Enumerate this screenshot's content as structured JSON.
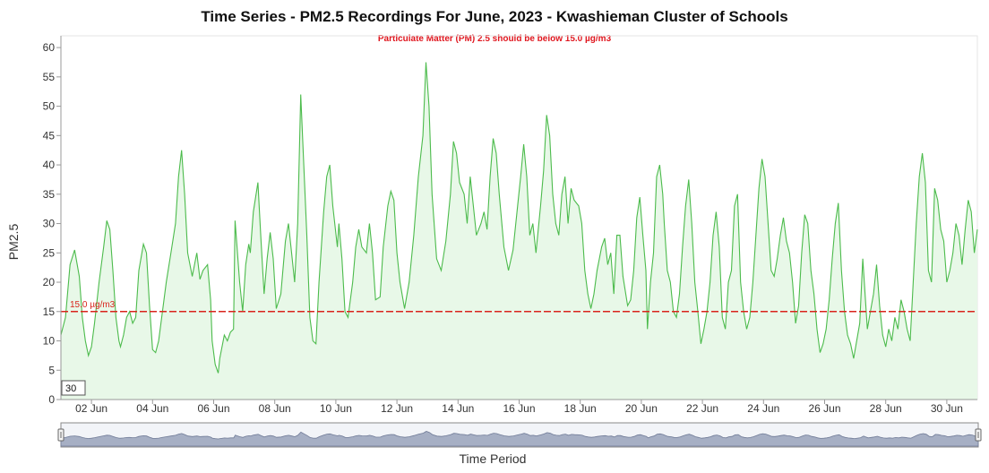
{
  "chart_data": {
    "type": "area",
    "title": "Time Series - PM2.5 Recordings For June, 2023 - Kwashieman Cluster of Schools",
    "subtitle": "Particulate Matter (PM) 2.5 should be below 15.0 µg/m3",
    "xlabel": "Time Period",
    "ylabel": "PM2.5",
    "ylim": [
      0,
      62
    ],
    "yticks": [
      "0",
      "5",
      "10",
      "15",
      "20",
      "25",
      "30",
      "35",
      "40",
      "45",
      "50",
      "55",
      "60"
    ],
    "xlim_days": [
      1,
      31
    ],
    "xticks": [
      {
        "label": "02 Jun",
        "day": 2
      },
      {
        "label": "04 Jun",
        "day": 4
      },
      {
        "label": "06 Jun",
        "day": 6
      },
      {
        "label": "08 Jun",
        "day": 8
      },
      {
        "label": "10 Jun",
        "day": 10
      },
      {
        "label": "12 Jun",
        "day": 12
      },
      {
        "label": "14 Jun",
        "day": 14
      },
      {
        "label": "16 Jun",
        "day": 16
      },
      {
        "label": "18 Jun",
        "day": 18
      },
      {
        "label": "20 Jun",
        "day": 20
      },
      {
        "label": "22 Jun",
        "day": 22
      },
      {
        "label": "24 Jun",
        "day": 24
      },
      {
        "label": "26 Jun",
        "day": 26
      },
      {
        "label": "28 Jun",
        "day": 28
      },
      {
        "label": "30 Jun",
        "day": 30
      }
    ],
    "threshold": {
      "value": 15.0,
      "label": "15.0 µg/m3",
      "color": "#d9241c"
    },
    "period_box": "30",
    "series": [
      {
        "color": "#4cbb4c",
        "fill": "#e8f8e8",
        "points": [
          [
            1.0,
            11
          ],
          [
            1.15,
            14
          ],
          [
            1.3,
            23
          ],
          [
            1.45,
            25.5
          ],
          [
            1.6,
            21
          ],
          [
            1.7,
            14
          ],
          [
            1.8,
            10
          ],
          [
            1.9,
            7.5
          ],
          [
            2.0,
            9
          ],
          [
            2.1,
            13
          ],
          [
            2.25,
            20
          ],
          [
            2.4,
            26
          ],
          [
            2.5,
            30.5
          ],
          [
            2.6,
            29
          ],
          [
            2.7,
            22
          ],
          [
            2.8,
            14
          ],
          [
            2.9,
            10
          ],
          [
            2.95,
            9
          ],
          [
            3.05,
            11
          ],
          [
            3.15,
            14
          ],
          [
            3.25,
            15
          ],
          [
            3.35,
            13
          ],
          [
            3.45,
            14
          ],
          [
            3.55,
            22
          ],
          [
            3.7,
            26.5
          ],
          [
            3.8,
            25
          ],
          [
            3.9,
            16
          ],
          [
            4.0,
            8.5
          ],
          [
            4.1,
            8
          ],
          [
            4.2,
            10
          ],
          [
            4.3,
            14
          ],
          [
            4.45,
            20
          ],
          [
            4.6,
            25
          ],
          [
            4.75,
            30
          ],
          [
            4.85,
            38
          ],
          [
            4.95,
            42.5
          ],
          [
            5.05,
            35
          ],
          [
            5.15,
            25
          ],
          [
            5.3,
            21
          ],
          [
            5.45,
            25
          ],
          [
            5.55,
            20.5
          ],
          [
            5.65,
            22
          ],
          [
            5.8,
            23
          ],
          [
            5.9,
            17
          ],
          [
            5.95,
            10
          ],
          [
            6.05,
            6
          ],
          [
            6.15,
            4.5
          ],
          [
            6.2,
            7
          ],
          [
            6.35,
            11
          ],
          [
            6.45,
            10
          ],
          [
            6.55,
            11.5
          ],
          [
            6.65,
            12
          ],
          [
            6.7,
            30.5
          ],
          [
            6.75,
            27
          ],
          [
            6.85,
            20
          ],
          [
            6.95,
            15
          ],
          [
            7.05,
            23
          ],
          [
            7.15,
            26.5
          ],
          [
            7.2,
            25
          ],
          [
            7.3,
            32
          ],
          [
            7.45,
            37
          ],
          [
            7.55,
            27
          ],
          [
            7.65,
            18
          ],
          [
            7.75,
            24
          ],
          [
            7.85,
            28.5
          ],
          [
            7.95,
            24
          ],
          [
            8.05,
            15.5
          ],
          [
            8.2,
            18
          ],
          [
            8.35,
            27
          ],
          [
            8.45,
            30
          ],
          [
            8.55,
            25
          ],
          [
            8.65,
            20
          ],
          [
            8.75,
            30
          ],
          [
            8.85,
            52
          ],
          [
            8.95,
            40
          ],
          [
            9.05,
            28
          ],
          [
            9.15,
            14
          ],
          [
            9.25,
            10
          ],
          [
            9.35,
            9.5
          ],
          [
            9.45,
            20
          ],
          [
            9.6,
            32
          ],
          [
            9.7,
            38
          ],
          [
            9.8,
            40
          ],
          [
            9.9,
            33
          ],
          [
            10.05,
            26
          ],
          [
            10.1,
            30
          ],
          [
            10.2,
            24
          ],
          [
            10.3,
            15
          ],
          [
            10.4,
            14
          ],
          [
            10.55,
            20
          ],
          [
            10.65,
            26
          ],
          [
            10.75,
            29
          ],
          [
            10.85,
            26
          ],
          [
            11.0,
            25
          ],
          [
            11.1,
            30
          ],
          [
            11.2,
            25
          ],
          [
            11.3,
            17
          ],
          [
            11.45,
            17.5
          ],
          [
            11.55,
            26
          ],
          [
            11.7,
            33
          ],
          [
            11.8,
            35.5
          ],
          [
            11.9,
            34
          ],
          [
            12.0,
            25
          ],
          [
            12.1,
            20
          ],
          [
            12.25,
            15.5
          ],
          [
            12.4,
            20
          ],
          [
            12.55,
            28
          ],
          [
            12.7,
            38
          ],
          [
            12.85,
            45
          ],
          [
            12.95,
            57.5
          ],
          [
            13.05,
            50
          ],
          [
            13.15,
            35
          ],
          [
            13.3,
            24
          ],
          [
            13.45,
            22
          ],
          [
            13.6,
            27
          ],
          [
            13.75,
            35
          ],
          [
            13.85,
            44
          ],
          [
            13.95,
            42
          ],
          [
            14.05,
            37
          ],
          [
            14.2,
            35
          ],
          [
            14.3,
            30
          ],
          [
            14.4,
            38
          ],
          [
            14.5,
            33
          ],
          [
            14.6,
            28
          ],
          [
            14.75,
            30
          ],
          [
            14.85,
            32
          ],
          [
            14.95,
            29
          ],
          [
            15.05,
            38
          ],
          [
            15.15,
            44.5
          ],
          [
            15.25,
            42
          ],
          [
            15.35,
            35
          ],
          [
            15.5,
            26
          ],
          [
            15.65,
            22
          ],
          [
            15.8,
            25.5
          ],
          [
            15.95,
            33
          ],
          [
            16.05,
            38
          ],
          [
            16.15,
            43.5
          ],
          [
            16.25,
            38
          ],
          [
            16.35,
            28
          ],
          [
            16.45,
            30
          ],
          [
            16.55,
            25
          ],
          [
            16.7,
            33
          ],
          [
            16.8,
            39
          ],
          [
            16.9,
            48.5
          ],
          [
            17.0,
            45
          ],
          [
            17.1,
            35
          ],
          [
            17.2,
            30
          ],
          [
            17.3,
            28
          ],
          [
            17.4,
            35
          ],
          [
            17.5,
            38
          ],
          [
            17.6,
            30
          ],
          [
            17.7,
            36
          ],
          [
            17.8,
            34
          ],
          [
            17.95,
            33
          ],
          [
            18.05,
            30
          ],
          [
            18.15,
            22
          ],
          [
            18.25,
            18
          ],
          [
            18.35,
            15.5
          ],
          [
            18.45,
            18
          ],
          [
            18.55,
            22
          ],
          [
            18.7,
            26
          ],
          [
            18.8,
            27.5
          ],
          [
            18.9,
            23
          ],
          [
            19.0,
            25
          ],
          [
            19.1,
            18
          ],
          [
            19.2,
            28
          ],
          [
            19.3,
            28
          ],
          [
            19.4,
            21
          ],
          [
            19.55,
            16
          ],
          [
            19.65,
            17
          ],
          [
            19.75,
            22
          ],
          [
            19.85,
            31
          ],
          [
            19.95,
            34.5
          ],
          [
            20.05,
            28
          ],
          [
            20.15,
            22
          ],
          [
            20.2,
            12
          ],
          [
            20.3,
            20
          ],
          [
            20.4,
            25
          ],
          [
            20.5,
            38
          ],
          [
            20.6,
            40
          ],
          [
            20.7,
            35
          ],
          [
            20.75,
            30
          ],
          [
            20.85,
            22
          ],
          [
            20.95,
            20
          ],
          [
            21.05,
            15
          ],
          [
            21.15,
            14
          ],
          [
            21.25,
            18
          ],
          [
            21.35,
            26
          ],
          [
            21.45,
            33
          ],
          [
            21.55,
            37.5
          ],
          [
            21.65,
            30
          ],
          [
            21.75,
            20
          ],
          [
            21.85,
            15
          ],
          [
            21.95,
            9.5
          ],
          [
            22.05,
            12
          ],
          [
            22.15,
            15
          ],
          [
            22.25,
            20
          ],
          [
            22.35,
            28
          ],
          [
            22.45,
            32
          ],
          [
            22.55,
            26
          ],
          [
            22.65,
            14
          ],
          [
            22.75,
            12
          ],
          [
            22.85,
            20
          ],
          [
            22.95,
            22
          ],
          [
            23.05,
            33
          ],
          [
            23.15,
            35
          ],
          [
            23.25,
            20
          ],
          [
            23.35,
            15
          ],
          [
            23.45,
            12
          ],
          [
            23.55,
            14
          ],
          [
            23.65,
            20
          ],
          [
            23.75,
            28
          ],
          [
            23.85,
            36
          ],
          [
            23.95,
            41
          ],
          [
            24.05,
            38
          ],
          [
            24.15,
            30
          ],
          [
            24.25,
            22
          ],
          [
            24.35,
            21
          ],
          [
            24.45,
            24
          ],
          [
            24.55,
            28
          ],
          [
            24.65,
            31
          ],
          [
            24.75,
            27
          ],
          [
            24.85,
            25
          ],
          [
            24.95,
            20
          ],
          [
            25.05,
            13
          ],
          [
            25.15,
            16
          ],
          [
            25.25,
            25
          ],
          [
            25.35,
            31.5
          ],
          [
            25.45,
            30
          ],
          [
            25.55,
            22
          ],
          [
            25.65,
            18
          ],
          [
            25.75,
            12
          ],
          [
            25.85,
            8
          ],
          [
            25.95,
            9.5
          ],
          [
            26.05,
            12
          ],
          [
            26.15,
            17
          ],
          [
            26.25,
            24
          ],
          [
            26.35,
            30
          ],
          [
            26.45,
            33.5
          ],
          [
            26.55,
            22
          ],
          [
            26.65,
            15
          ],
          [
            26.75,
            11
          ],
          [
            26.85,
            9.5
          ],
          [
            26.95,
            7
          ],
          [
            27.05,
            10
          ],
          [
            27.15,
            13
          ],
          [
            27.25,
            24
          ],
          [
            27.3,
            20
          ],
          [
            27.4,
            12
          ],
          [
            27.5,
            15
          ],
          [
            27.6,
            18
          ],
          [
            27.7,
            23
          ],
          [
            27.8,
            16
          ],
          [
            27.9,
            11
          ],
          [
            28.0,
            9
          ],
          [
            28.1,
            12
          ],
          [
            28.2,
            10
          ],
          [
            28.3,
            14
          ],
          [
            28.4,
            12
          ],
          [
            28.5,
            17
          ],
          [
            28.6,
            15
          ],
          [
            28.7,
            12
          ],
          [
            28.8,
            10
          ],
          [
            28.9,
            20
          ],
          [
            29.0,
            30
          ],
          [
            29.1,
            38
          ],
          [
            29.2,
            42
          ],
          [
            29.3,
            37
          ],
          [
            29.4,
            22
          ],
          [
            29.5,
            20
          ],
          [
            29.6,
            36
          ],
          [
            29.7,
            34
          ],
          [
            29.8,
            29
          ],
          [
            29.9,
            27
          ],
          [
            30.0,
            20
          ],
          [
            30.1,
            22
          ],
          [
            30.2,
            25
          ],
          [
            30.3,
            30
          ],
          [
            30.4,
            28
          ],
          [
            30.5,
            23
          ],
          [
            30.6,
            29
          ],
          [
            30.7,
            34
          ],
          [
            30.8,
            32
          ],
          [
            30.9,
            25
          ],
          [
            31.0,
            29
          ]
        ]
      }
    ],
    "navigator": {
      "label": "Time Period"
    }
  }
}
